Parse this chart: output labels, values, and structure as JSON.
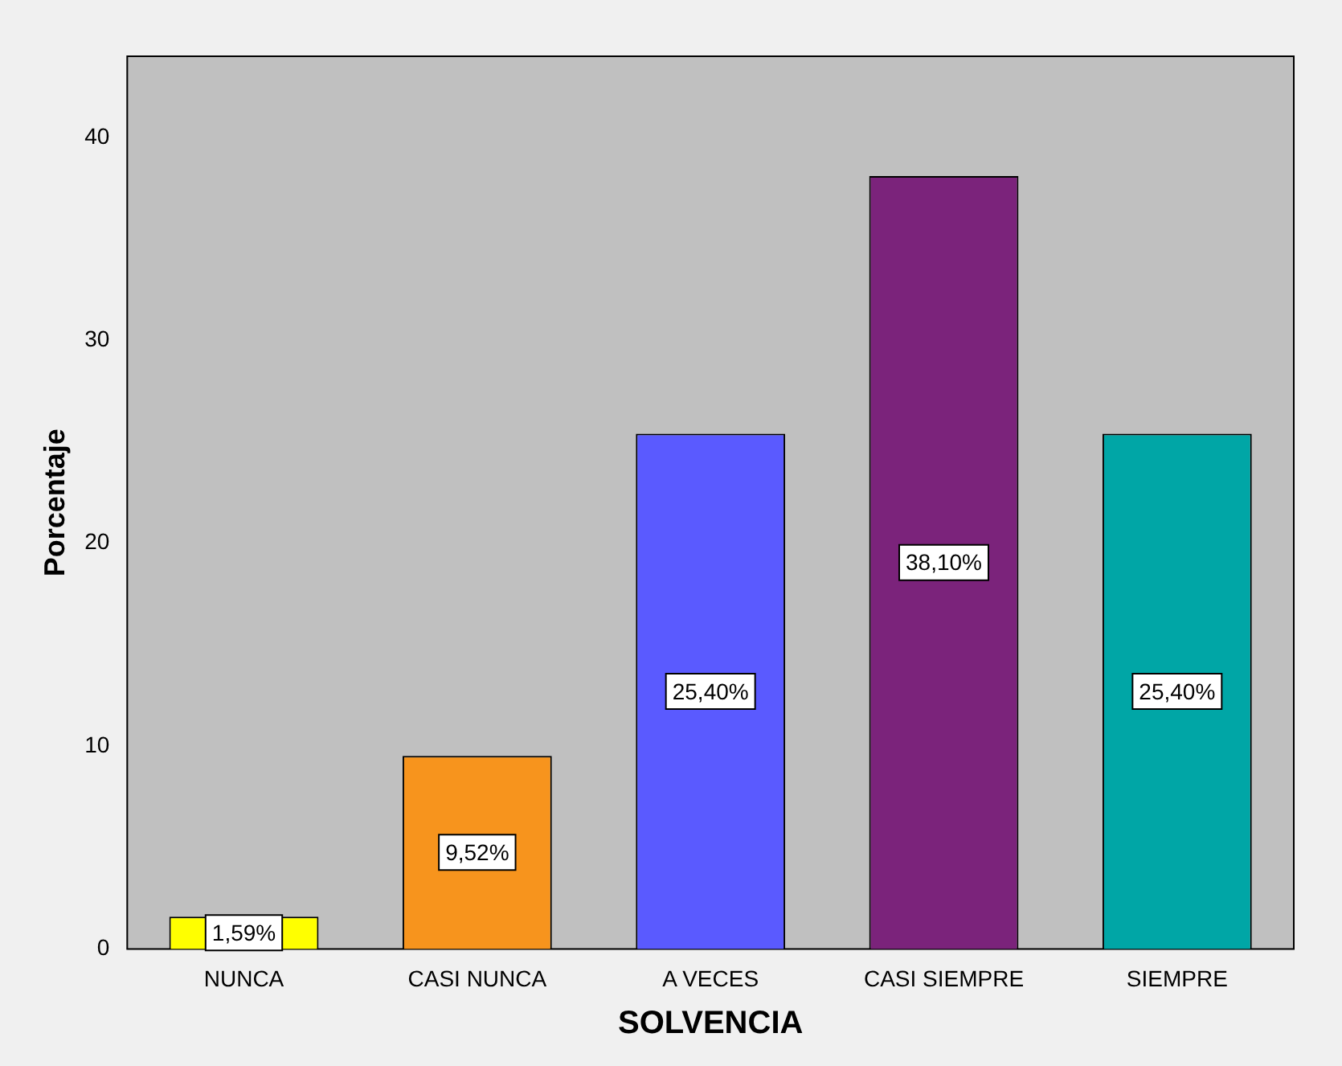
{
  "chart_data": {
    "type": "bar",
    "xlabel": "SOLVENCIA",
    "ylabel": "Porcentaje",
    "categories": [
      "NUNCA",
      "CASI NUNCA",
      "A VECES",
      "CASI SIEMPRE",
      "SIEMPRE"
    ],
    "values": [
      1.59,
      9.52,
      25.4,
      38.1,
      25.4
    ],
    "colors": [
      "#ffff00",
      "#f7941d",
      "#5a5aff",
      "#7b237b",
      "#00a6a6"
    ],
    "value_labels": [
      "1,59%",
      "9,52%",
      "25,40%",
      "38,10%",
      "25,40%"
    ],
    "ylim": [
      0,
      44
    ],
    "yticks": [
      0,
      10,
      20,
      30,
      40
    ],
    "grid": false,
    "legend": false
  }
}
